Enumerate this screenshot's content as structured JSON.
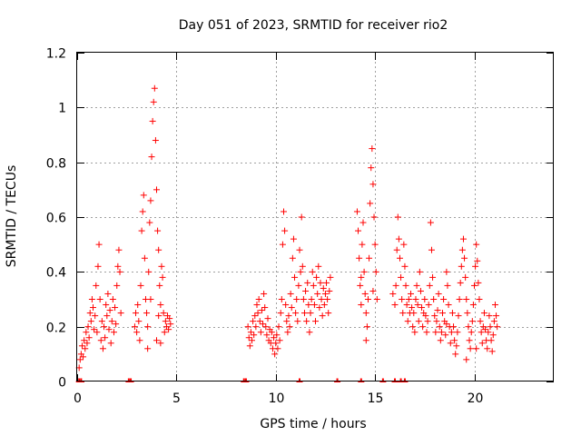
{
  "chart_data": {
    "type": "scatter",
    "title": "Day 051 of 2023, SRMTID for receiver rio2",
    "xlabel": "GPS time / hours",
    "ylabel": "SRMTID / TECUs",
    "xlim": [
      0,
      24
    ],
    "ylim": [
      0,
      1.2
    ],
    "x_ticks": [
      0,
      5,
      10,
      15,
      20
    ],
    "x_tick_labels": [
      "0",
      "5",
      "10",
      "15",
      "20"
    ],
    "y_ticks": [
      0,
      0.2,
      0.4,
      0.6,
      0.8,
      1.0,
      1.2
    ],
    "y_tick_labels": [
      "0",
      "0.2",
      "0.4",
      "0.6",
      "0.8",
      "1",
      "1.2"
    ],
    "grid": true,
    "marker": "plus",
    "series": [
      {
        "name": "SRMTID",
        "color": "#ff0000",
        "points": [
          [
            0.1,
            0.05
          ],
          [
            0.15,
            0.08
          ],
          [
            0.2,
            0.1
          ],
          [
            0.25,
            0.13
          ],
          [
            0.3,
            0.09
          ],
          [
            0.35,
            0.15
          ],
          [
            0.4,
            0.12
          ],
          [
            0.45,
            0.18
          ],
          [
            0.5,
            0.14
          ],
          [
            0.55,
            0.2
          ],
          [
            0.6,
            0.16
          ],
          [
            0.65,
            0.25
          ],
          [
            0.7,
            0.22
          ],
          [
            0.75,
            0.3
          ],
          [
            0.8,
            0.27
          ],
          [
            0.85,
            0.19
          ],
          [
            0.9,
            0.24
          ],
          [
            0.95,
            0.35
          ],
          [
            1.0,
            0.18
          ],
          [
            1.05,
            0.42
          ],
          [
            1.1,
            0.5
          ],
          [
            1.15,
            0.3
          ],
          [
            1.2,
            0.15
          ],
          [
            1.25,
            0.22
          ],
          [
            1.3,
            0.12
          ],
          [
            1.35,
            0.2
          ],
          [
            1.4,
            0.16
          ],
          [
            1.45,
            0.28
          ],
          [
            1.5,
            0.24
          ],
          [
            1.55,
            0.32
          ],
          [
            1.6,
            0.19
          ],
          [
            1.65,
            0.26
          ],
          [
            1.7,
            0.14
          ],
          [
            1.75,
            0.22
          ],
          [
            1.8,
            0.3
          ],
          [
            1.85,
            0.18
          ],
          [
            1.9,
            0.27
          ],
          [
            1.95,
            0.21
          ],
          [
            2.0,
            0.35
          ],
          [
            2.05,
            0.42
          ],
          [
            2.1,
            0.48
          ],
          [
            2.15,
            0.4
          ],
          [
            2.2,
            0.25
          ],
          [
            2.9,
            0.2
          ],
          [
            2.95,
            0.25
          ],
          [
            3.0,
            0.18
          ],
          [
            3.05,
            0.28
          ],
          [
            3.1,
            0.22
          ],
          [
            3.15,
            0.15
          ],
          [
            3.2,
            0.35
          ],
          [
            3.25,
            0.55
          ],
          [
            3.3,
            0.62
          ],
          [
            3.35,
            0.68
          ],
          [
            3.4,
            0.45
          ],
          [
            3.45,
            0.3
          ],
          [
            3.5,
            0.25
          ],
          [
            3.55,
            0.2
          ],
          [
            3.6,
            0.4
          ],
          [
            3.65,
            0.58
          ],
          [
            3.7,
            0.66
          ],
          [
            3.75,
            0.82
          ],
          [
            3.8,
            0.95
          ],
          [
            3.85,
            1.02
          ],
          [
            3.9,
            1.07
          ],
          [
            3.95,
            0.88
          ],
          [
            4.0,
            0.7
          ],
          [
            4.05,
            0.55
          ],
          [
            4.1,
            0.48
          ],
          [
            4.15,
            0.35
          ],
          [
            4.2,
            0.28
          ],
          [
            4.25,
            0.42
          ],
          [
            4.3,
            0.38
          ],
          [
            4.35,
            0.25
          ],
          [
            4.4,
            0.18
          ],
          [
            4.45,
            0.22
          ],
          [
            4.5,
            0.2
          ],
          [
            4.55,
            0.24
          ],
          [
            4.6,
            0.19
          ],
          [
            4.65,
            0.23
          ],
          [
            4.7,
            0.21
          ],
          [
            3.55,
            0.12
          ],
          [
            4.0,
            0.15
          ],
          [
            4.2,
            0.14
          ],
          [
            3.7,
            0.3
          ],
          [
            4.1,
            0.24
          ],
          [
            8.6,
            0.2
          ],
          [
            8.65,
            0.16
          ],
          [
            8.7,
            0.13
          ],
          [
            8.75,
            0.18
          ],
          [
            8.8,
            0.15
          ],
          [
            8.85,
            0.22
          ],
          [
            8.9,
            0.17
          ],
          [
            8.95,
            0.24
          ],
          [
            9.0,
            0.2
          ],
          [
            9.05,
            0.28
          ],
          [
            9.1,
            0.25
          ],
          [
            9.15,
            0.3
          ],
          [
            9.2,
            0.22
          ],
          [
            9.25,
            0.18
          ],
          [
            9.3,
            0.26
          ],
          [
            9.35,
            0.21
          ],
          [
            9.4,
            0.32
          ],
          [
            9.45,
            0.27
          ],
          [
            9.5,
            0.2
          ],
          [
            9.55,
            0.17
          ],
          [
            9.6,
            0.23
          ],
          [
            9.65,
            0.15
          ],
          [
            9.7,
            0.19
          ],
          [
            9.75,
            0.14
          ],
          [
            9.8,
            0.18
          ],
          [
            9.85,
            0.12
          ],
          [
            9.9,
            0.16
          ],
          [
            9.95,
            0.1
          ],
          [
            10.0,
            0.14
          ],
          [
            10.05,
            0.17
          ],
          [
            10.1,
            0.12
          ],
          [
            10.15,
            0.2
          ],
          [
            10.2,
            0.15
          ],
          [
            10.25,
            0.25
          ],
          [
            10.3,
            0.3
          ],
          [
            10.35,
            0.5
          ],
          [
            10.4,
            0.62
          ],
          [
            10.45,
            0.55
          ],
          [
            10.5,
            0.28
          ],
          [
            10.55,
            0.22
          ],
          [
            10.6,
            0.18
          ],
          [
            10.65,
            0.24
          ],
          [
            10.7,
            0.2
          ],
          [
            10.75,
            0.32
          ],
          [
            10.8,
            0.27
          ],
          [
            10.85,
            0.45
          ],
          [
            10.9,
            0.52
          ],
          [
            10.95,
            0.38
          ],
          [
            11.0,
            0.25
          ],
          [
            11.05,
            0.3
          ],
          [
            11.1,
            0.22
          ],
          [
            11.15,
            0.35
          ],
          [
            11.2,
            0.48
          ],
          [
            11.25,
            0.4
          ],
          [
            11.3,
            0.6
          ],
          [
            11.35,
            0.42
          ],
          [
            11.4,
            0.3
          ],
          [
            11.45,
            0.25
          ],
          [
            11.5,
            0.33
          ],
          [
            11.55,
            0.22
          ],
          [
            11.6,
            0.36
          ],
          [
            11.65,
            0.28
          ],
          [
            11.7,
            0.18
          ],
          [
            11.75,
            0.25
          ],
          [
            11.8,
            0.3
          ],
          [
            11.85,
            0.4
          ],
          [
            11.9,
            0.35
          ],
          [
            11.95,
            0.28
          ],
          [
            12.0,
            0.22
          ],
          [
            12.05,
            0.38
          ],
          [
            12.1,
            0.32
          ],
          [
            12.15,
            0.42
          ],
          [
            12.2,
            0.27
          ],
          [
            12.25,
            0.36
          ],
          [
            12.3,
            0.3
          ],
          [
            12.35,
            0.24
          ],
          [
            12.4,
            0.34
          ],
          [
            12.45,
            0.28
          ],
          [
            12.5,
            0.32
          ],
          [
            12.55,
            0.36
          ],
          [
            12.6,
            0.3
          ],
          [
            12.65,
            0.25
          ],
          [
            12.7,
            0.33
          ],
          [
            12.75,
            0.38
          ],
          [
            14.1,
            0.62
          ],
          [
            14.15,
            0.55
          ],
          [
            14.2,
            0.45
          ],
          [
            14.25,
            0.35
          ],
          [
            14.3,
            0.28
          ],
          [
            14.35,
            0.5
          ],
          [
            14.4,
            0.58
          ],
          [
            14.45,
            0.4
          ],
          [
            14.5,
            0.32
          ],
          [
            14.55,
            0.25
          ],
          [
            14.6,
            0.2
          ],
          [
            14.65,
            0.3
          ],
          [
            14.7,
            0.45
          ],
          [
            14.75,
            0.65
          ],
          [
            14.8,
            0.78
          ],
          [
            14.85,
            0.85
          ],
          [
            14.9,
            0.72
          ],
          [
            14.95,
            0.6
          ],
          [
            15.0,
            0.5
          ],
          [
            15.05,
            0.4
          ],
          [
            15.1,
            0.3
          ],
          [
            14.55,
            0.15
          ],
          [
            14.3,
            0.38
          ],
          [
            14.9,
            0.33
          ],
          [
            15.9,
            0.32
          ],
          [
            16.0,
            0.28
          ],
          [
            16.05,
            0.35
          ],
          [
            16.1,
            0.48
          ],
          [
            16.15,
            0.6
          ],
          [
            16.2,
            0.52
          ],
          [
            16.25,
            0.45
          ],
          [
            16.3,
            0.38
          ],
          [
            16.35,
            0.3
          ],
          [
            16.4,
            0.25
          ],
          [
            16.45,
            0.5
          ],
          [
            16.5,
            0.42
          ],
          [
            16.55,
            0.35
          ],
          [
            16.6,
            0.28
          ],
          [
            16.65,
            0.22
          ],
          [
            16.7,
            0.3
          ],
          [
            16.75,
            0.25
          ],
          [
            16.8,
            0.32
          ],
          [
            16.85,
            0.27
          ],
          [
            16.9,
            0.2
          ],
          [
            16.95,
            0.25
          ],
          [
            17.0,
            0.18
          ],
          [
            17.05,
            0.3
          ],
          [
            17.1,
            0.35
          ],
          [
            17.15,
            0.28
          ],
          [
            17.2,
            0.22
          ],
          [
            17.25,
            0.4
          ],
          [
            17.3,
            0.33
          ],
          [
            17.35,
            0.27
          ],
          [
            17.4,
            0.2
          ],
          [
            17.45,
            0.25
          ],
          [
            17.5,
            0.3
          ],
          [
            17.55,
            0.24
          ],
          [
            17.6,
            0.18
          ],
          [
            17.65,
            0.22
          ],
          [
            17.7,
            0.28
          ],
          [
            17.75,
            0.35
          ],
          [
            17.8,
            0.58
          ],
          [
            17.85,
            0.48
          ],
          [
            17.9,
            0.38
          ],
          [
            17.95,
            0.3
          ],
          [
            18.0,
            0.24
          ],
          [
            18.05,
            0.18
          ],
          [
            18.1,
            0.22
          ],
          [
            18.15,
            0.26
          ],
          [
            18.2,
            0.32
          ],
          [
            18.25,
            0.2
          ],
          [
            18.3,
            0.15
          ],
          [
            18.35,
            0.18
          ],
          [
            18.4,
            0.25
          ],
          [
            18.45,
            0.3
          ],
          [
            18.5,
            0.22
          ],
          [
            18.55,
            0.17
          ],
          [
            18.6,
            0.21
          ],
          [
            18.65,
            0.35
          ],
          [
            18.7,
            0.28
          ],
          [
            18.75,
            0.2
          ],
          [
            18.8,
            0.14
          ],
          [
            18.85,
            0.18
          ],
          [
            18.9,
            0.25
          ],
          [
            18.95,
            0.2
          ],
          [
            19.0,
            0.15
          ],
          [
            19.05,
            0.1
          ],
          [
            19.1,
            0.13
          ],
          [
            19.15,
            0.18
          ],
          [
            19.2,
            0.24
          ],
          [
            19.25,
            0.3
          ],
          [
            19.3,
            0.36
          ],
          [
            19.35,
            0.42
          ],
          [
            19.4,
            0.48
          ],
          [
            19.45,
            0.52
          ],
          [
            19.5,
            0.45
          ],
          [
            19.55,
            0.38
          ],
          [
            19.6,
            0.3
          ],
          [
            19.65,
            0.25
          ],
          [
            19.7,
            0.2
          ],
          [
            19.75,
            0.15
          ],
          [
            19.8,
            0.12
          ],
          [
            19.85,
            0.18
          ],
          [
            19.9,
            0.22
          ],
          [
            19.95,
            0.28
          ],
          [
            20.0,
            0.35
          ],
          [
            20.05,
            0.42
          ],
          [
            20.1,
            0.5
          ],
          [
            20.15,
            0.44
          ],
          [
            20.2,
            0.36
          ],
          [
            20.25,
            0.3
          ],
          [
            20.3,
            0.22
          ],
          [
            20.35,
            0.18
          ],
          [
            20.4,
            0.14
          ],
          [
            20.45,
            0.2
          ],
          [
            20.5,
            0.25
          ],
          [
            20.55,
            0.19
          ],
          [
            20.6,
            0.15
          ],
          [
            20.65,
            0.12
          ],
          [
            20.7,
            0.18
          ],
          [
            20.75,
            0.24
          ],
          [
            20.8,
            0.2
          ],
          [
            20.85,
            0.15
          ],
          [
            20.9,
            0.11
          ],
          [
            20.95,
            0.17
          ],
          [
            21.0,
            0.22
          ],
          [
            21.05,
            0.28
          ],
          [
            21.1,
            0.24
          ],
          [
            21.15,
            0.2
          ],
          [
            19.6,
            0.08
          ],
          [
            20.1,
            0.12
          ],
          [
            18.6,
            0.4
          ]
        ]
      }
    ],
    "baseline_marks_x": [
      0.1,
      0.2,
      2.6,
      2.7,
      8.4,
      8.5,
      11.2,
      13.1,
      14.3,
      15.4,
      16.0,
      16.3,
      16.5
    ]
  }
}
